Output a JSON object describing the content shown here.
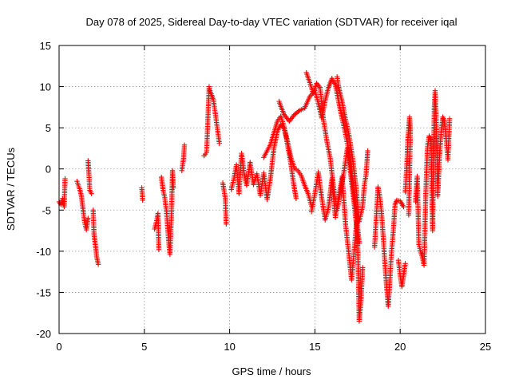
{
  "chart_data": {
    "type": "scatter",
    "title": "Day 078 of 2025, Sidereal Day-to-day VTEC variation (SDTVAR) for receiver iqal",
    "xlabel": "GPS time / hours",
    "ylabel": "SDTVAR / TECUs",
    "xlim": [
      0,
      25
    ],
    "ylim": [
      -20,
      15
    ],
    "xticks": [
      0,
      5,
      10,
      15,
      20,
      25
    ],
    "yticks": [
      -20,
      -15,
      -10,
      -5,
      0,
      5,
      10,
      15
    ],
    "grid": true,
    "marker": "plus",
    "color": "#ff0000",
    "series": [
      {
        "name": "SDTVAR",
        "segments": [
          [
            [
              0.0,
              -4.0
            ],
            [
              0.1,
              -4.3
            ],
            [
              0.2,
              -3.6
            ],
            [
              0.3,
              -4.6
            ],
            [
              0.35,
              -1.2
            ]
          ],
          [
            [
              1.05,
              -1.5
            ],
            [
              1.2,
              -2.4
            ],
            [
              1.3,
              -3.2
            ],
            [
              1.4,
              -4.8
            ],
            [
              1.5,
              -6.5
            ],
            [
              1.6,
              -7.4
            ],
            [
              1.7,
              -6.0
            ]
          ],
          [
            [
              1.7,
              1.0
            ],
            [
              1.75,
              -0.6
            ],
            [
              1.8,
              -2.6
            ],
            [
              1.9,
              -3.0
            ]
          ],
          [
            [
              2.0,
              -5.0
            ],
            [
              2.05,
              -8.0
            ],
            [
              2.15,
              -9.6
            ],
            [
              2.2,
              -10.6
            ],
            [
              2.3,
              -11.6
            ]
          ],
          [
            [
              4.85,
              -2.3
            ],
            [
              4.9,
              -3.8
            ]
          ],
          [
            [
              5.6,
              -7.3
            ],
            [
              5.7,
              -6.5
            ],
            [
              5.8,
              -5.4
            ],
            [
              5.85,
              -9.8
            ]
          ],
          [
            [
              6.0,
              -1.0
            ],
            [
              6.1,
              -2.6
            ],
            [
              6.2,
              -3.5
            ],
            [
              6.3,
              -5.2
            ],
            [
              6.4,
              -8.1
            ],
            [
              6.5,
              -10.4
            ],
            [
              6.6,
              -5.0
            ],
            [
              6.65,
              -0.2
            ],
            [
              6.7,
              -2.3
            ]
          ],
          [
            [
              7.2,
              -0.2
            ],
            [
              7.3,
              1.3
            ],
            [
              7.35,
              2.9
            ]
          ],
          [
            [
              8.5,
              1.6
            ],
            [
              8.65,
              2.0
            ],
            [
              8.8,
              10.0
            ],
            [
              8.85,
              9.5
            ],
            [
              9.05,
              8.4
            ],
            [
              9.4,
              3.1
            ]
          ],
          [
            [
              9.6,
              -1.7
            ],
            [
              9.75,
              -3.6
            ],
            [
              9.8,
              -6.7
            ]
          ],
          [
            [
              10.1,
              -2.5
            ],
            [
              10.25,
              -1.2
            ],
            [
              10.4,
              0.5
            ],
            [
              10.55,
              -3.0
            ],
            [
              10.7,
              1.9
            ],
            [
              10.85,
              -0.6
            ],
            [
              11.0,
              -2.0
            ],
            [
              11.2,
              0.8
            ],
            [
              11.4,
              -1.9
            ],
            [
              11.6,
              -0.6
            ],
            [
              11.8,
              -3.2
            ],
            [
              12.0,
              -0.5
            ],
            [
              12.2,
              -3.7
            ],
            [
              12.4,
              -1.0
            ],
            [
              12.6,
              2.6
            ],
            [
              12.8,
              4.6
            ],
            [
              13.0,
              5.4
            ],
            [
              13.2,
              4.9
            ],
            [
              13.4,
              3.3
            ],
            [
              13.6,
              1.3
            ],
            [
              13.8,
              0.1
            ],
            [
              14.0,
              -0.2
            ],
            [
              14.2,
              -0.8
            ],
            [
              14.4,
              -2.0
            ],
            [
              14.6,
              -3.0
            ],
            [
              14.8,
              -4.5
            ]
          ],
          [
            [
              12.0,
              1.4
            ],
            [
              12.2,
              2.2
            ],
            [
              12.4,
              3.0
            ],
            [
              12.6,
              4.4
            ],
            [
              12.8,
              5.8
            ],
            [
              13.0,
              6.4
            ],
            [
              13.2,
              5.1
            ],
            [
              13.4,
              2.9
            ],
            [
              13.6,
              0.5
            ],
            [
              13.75,
              -1.8
            ],
            [
              13.9,
              -3.6
            ]
          ],
          [
            [
              12.9,
              8.2
            ],
            [
              13.0,
              7.6
            ],
            [
              13.2,
              6.6
            ],
            [
              13.5,
              5.8
            ],
            [
              13.8,
              6.6
            ],
            [
              14.1,
              7.1
            ],
            [
              14.4,
              7.4
            ],
            [
              14.7,
              8.8
            ],
            [
              15.0,
              9.5
            ],
            [
              15.2,
              8.0
            ],
            [
              15.4,
              6.2
            ],
            [
              15.6,
              8.3
            ],
            [
              15.8,
              9.9
            ],
            [
              16.0,
              11.0
            ],
            [
              16.2,
              10.2
            ],
            [
              16.4,
              8.1
            ],
            [
              16.6,
              6.1
            ],
            [
              16.8,
              4.2
            ],
            [
              17.0,
              2.0
            ],
            [
              17.2,
              -1.2
            ],
            [
              17.4,
              -5.0
            ],
            [
              17.6,
              -9.0
            ]
          ],
          [
            [
              14.5,
              11.7
            ],
            [
              14.7,
              10.5
            ],
            [
              14.9,
              9.2
            ],
            [
              15.1,
              10.4
            ],
            [
              15.3,
              9.9
            ],
            [
              15.5,
              6.0
            ],
            [
              15.7,
              3.4
            ],
            [
              15.9,
              1.3
            ],
            [
              16.1,
              -2.3
            ],
            [
              16.3,
              -5.0
            ],
            [
              16.5,
              -2.7
            ],
            [
              16.7,
              -0.4
            ],
            [
              16.9,
              2.5
            ],
            [
              17.1,
              -0.7
            ],
            [
              17.3,
              -4.2
            ],
            [
              17.5,
              -8.0
            ],
            [
              17.6,
              -18.5
            ],
            [
              17.7,
              -16.0
            ],
            [
              17.8,
              -12.0
            ]
          ],
          [
            [
              16.3,
              11.2
            ],
            [
              16.4,
              9.9
            ],
            [
              16.6,
              8.1
            ],
            [
              16.8,
              6.0
            ],
            [
              17.0,
              4.1
            ],
            [
              17.2,
              1.5
            ],
            [
              17.4,
              -2.0
            ],
            [
              17.6,
              -6.4
            ],
            [
              17.8,
              -4.5
            ],
            [
              17.9,
              -2.0
            ],
            [
              18.0,
              -0.7
            ],
            [
              18.1,
              2.2
            ]
          ],
          [
            [
              14.8,
              -5.2
            ],
            [
              15.0,
              -3.0
            ],
            [
              15.2,
              -0.4
            ],
            [
              15.4,
              -3.5
            ],
            [
              15.6,
              -6.2
            ],
            [
              15.8,
              -4.7
            ],
            [
              16.0,
              -1.2
            ],
            [
              16.2,
              -5.9
            ],
            [
              16.4,
              -3.3
            ],
            [
              16.6,
              -0.9
            ],
            [
              16.8,
              -6.8
            ],
            [
              17.0,
              -10.5
            ],
            [
              17.15,
              -13.5
            ],
            [
              17.3,
              -10.0
            ],
            [
              17.45,
              -6.4
            ]
          ],
          [
            [
              18.5,
              -9.5
            ],
            [
              18.7,
              -2.2
            ],
            [
              18.8,
              -3.3
            ],
            [
              18.9,
              -5.2
            ],
            [
              19.0,
              -8.0
            ],
            [
              19.1,
              -11.3
            ],
            [
              19.2,
              -14.2
            ],
            [
              19.3,
              -16.7
            ],
            [
              19.4,
              -13.4
            ],
            [
              19.5,
              -9.9
            ],
            [
              19.6,
              -7.5
            ],
            [
              19.7,
              -4.3
            ],
            [
              19.8,
              -3.8
            ],
            [
              20.0,
              -3.9
            ],
            [
              20.2,
              -4.6
            ]
          ],
          [
            [
              19.9,
              -11.1
            ],
            [
              20.0,
              -12.9
            ],
            [
              20.1,
              -14.3
            ],
            [
              20.2,
              -12.9
            ],
            [
              20.3,
              -11.5
            ]
          ],
          [
            [
              20.3,
              -2.8
            ],
            [
              20.4,
              0.9
            ],
            [
              20.45,
              3.6
            ],
            [
              20.55,
              6.3
            ],
            [
              20.6,
              4.7
            ],
            [
              20.5,
              -5.6
            ]
          ],
          [
            [
              20.9,
              -4.0
            ],
            [
              21.0,
              -0.9
            ],
            [
              21.1,
              -9.2
            ],
            [
              21.2,
              -10.1
            ],
            [
              21.3,
              -10.7
            ],
            [
              21.4,
              -11.7
            ],
            [
              21.5,
              -3.2
            ],
            [
              21.6,
              2.7
            ],
            [
              21.7,
              4.0
            ],
            [
              21.8,
              3.5
            ],
            [
              21.9,
              -7.5
            ],
            [
              22.0,
              7.4
            ],
            [
              22.05,
              9.5
            ],
            [
              22.15,
              3.7
            ],
            [
              22.2,
              -3.3
            ],
            [
              22.3,
              1.2
            ],
            [
              22.4,
              4.4
            ],
            [
              22.5,
              6.3
            ],
            [
              22.6,
              5.8
            ],
            [
              22.7,
              3.5
            ],
            [
              22.8,
              1.1
            ],
            [
              22.9,
              6.1
            ]
          ]
        ]
      }
    ]
  }
}
